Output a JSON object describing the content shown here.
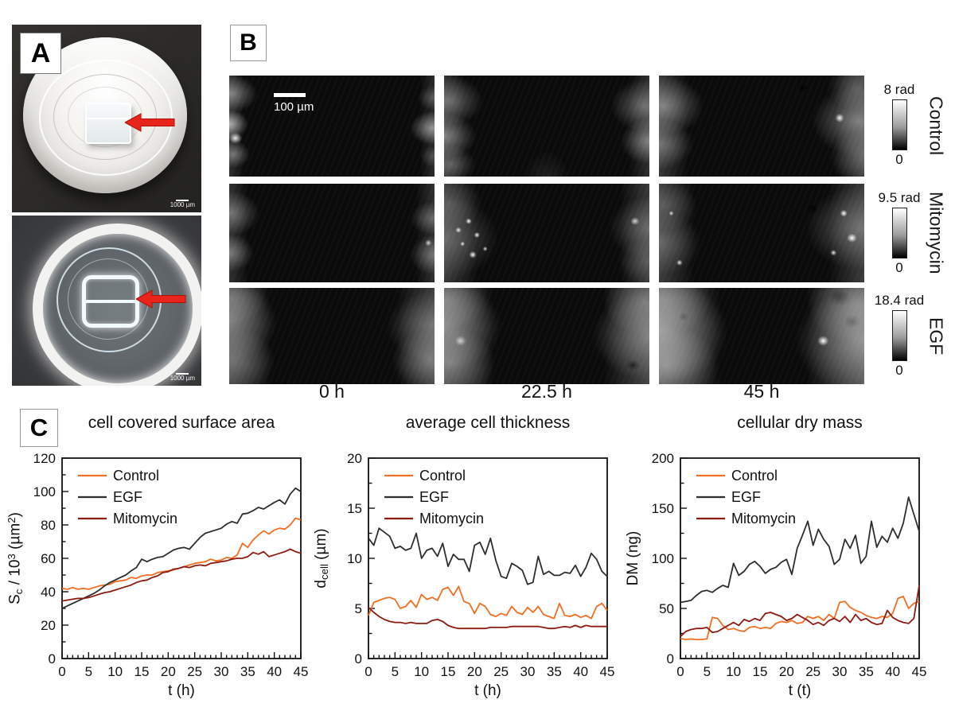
{
  "panelA": {
    "label": "A",
    "photos": [
      {
        "name": "dish-side-view",
        "scale_bar": "1000 µm"
      },
      {
        "name": "dish-top-view",
        "scale_bar": "1000 µm"
      }
    ]
  },
  "panelB": {
    "label": "B",
    "scale_bar": "100 µm",
    "rows": [
      {
        "label": "Control",
        "cbar_max": "8 rad",
        "cbar_min": "0"
      },
      {
        "label": "Mitomycin",
        "cbar_max": "9.5 rad",
        "cbar_min": "0"
      },
      {
        "label": "EGF",
        "cbar_max": "18.4 rad",
        "cbar_min": "0"
      }
    ],
    "time_labels": [
      "0 h",
      "22.5 h",
      "45 h"
    ]
  },
  "panelC": {
    "label": "C"
  },
  "colors": {
    "control": "#F06F22",
    "egf": "#2E2E2E",
    "mitomycin": "#8E1B12",
    "arrow_red": "#E8251C"
  },
  "chart_data": [
    {
      "type": "line",
      "title": "cell covered surface area",
      "xlabel": "t (h)",
      "ylabel": "S_c / 10^3 (µm^2)",
      "ylabel_parts": [
        {
          "t": "S"
        },
        {
          "t": "c",
          "style": "sub"
        },
        {
          "t": " / 10"
        },
        {
          "t": "3",
          "style": "sup"
        },
        {
          "t": " (µm"
        },
        {
          "t": "2",
          "style": "sup"
        },
        {
          "t": ")"
        }
      ],
      "xlim": [
        0,
        45
      ],
      "ylim": [
        0,
        120
      ],
      "xtick_step": 5,
      "ytick_step": 20,
      "xminor_step": 1,
      "grid": false,
      "legend_position": "top-left",
      "x": [
        0,
        1,
        2,
        3,
        4,
        5,
        6,
        7,
        8,
        9,
        10,
        11,
        12,
        13,
        14,
        15,
        16,
        17,
        18,
        19,
        20,
        21,
        22,
        23,
        24,
        25,
        26,
        27,
        28,
        29,
        30,
        31,
        32,
        33,
        34,
        35,
        36,
        37,
        38,
        39,
        40,
        41,
        42,
        43,
        44,
        45
      ],
      "series": [
        {
          "name": "Control",
          "color": "#F06F22",
          "values": [
            42,
            41.5,
            42.5,
            41.5,
            42,
            41.5,
            42.5,
            43.5,
            44,
            44.5,
            46,
            46.5,
            47,
            48.5,
            48,
            49.5,
            50,
            50,
            51.5,
            52,
            52.5,
            53,
            54,
            55,
            56,
            57,
            57.5,
            58,
            59.5,
            58.5,
            59,
            60.5,
            60,
            62,
            69,
            66.5,
            71,
            74,
            76.5,
            74.5,
            77,
            78,
            77.5,
            80,
            84,
            83
          ]
        },
        {
          "name": "EGF",
          "color": "#2E2E2E",
          "values": [
            30,
            31.5,
            33,
            34.5,
            36,
            37.5,
            39,
            41,
            43.5,
            45.5,
            47,
            48.5,
            50,
            52.5,
            54.5,
            59.5,
            58,
            59.5,
            60.5,
            61,
            63,
            65,
            66,
            66.5,
            65.5,
            69,
            72.5,
            75,
            76,
            77,
            78,
            80.5,
            82,
            81,
            86.5,
            87,
            88.5,
            90.5,
            89.5,
            91.5,
            93.5,
            95,
            92.5,
            98.5,
            102,
            100
          ]
        },
        {
          "name": "Mitomycin",
          "color": "#8E1B12",
          "values": [
            34.5,
            35,
            35.5,
            36,
            36,
            36.5,
            37.5,
            38.5,
            39.5,
            40,
            41,
            42,
            43,
            44,
            45.5,
            46.5,
            47,
            48.5,
            49.5,
            51.5,
            52,
            53.5,
            54,
            55,
            54.5,
            55.5,
            56,
            55.5,
            57,
            57.5,
            58,
            58.5,
            59.5,
            60,
            60,
            61,
            63.5,
            62.5,
            64,
            61,
            62,
            63,
            64,
            65.5,
            64,
            63
          ]
        }
      ]
    },
    {
      "type": "line",
      "title": "average cell thickness",
      "xlabel": "t (h)",
      "ylabel": "d_cell (µm)",
      "ylabel_parts": [
        {
          "t": "d"
        },
        {
          "t": "cell",
          "style": "sub"
        },
        {
          "t": " (µm)"
        }
      ],
      "xlim": [
        0,
        45
      ],
      "ylim": [
        0,
        20
      ],
      "xtick_step": 5,
      "ytick_step": 5,
      "xminor_step": 1,
      "grid": false,
      "legend_position": "top-left",
      "x": [
        0,
        1,
        2,
        3,
        4,
        5,
        6,
        7,
        8,
        9,
        10,
        11,
        12,
        13,
        14,
        15,
        16,
        17,
        18,
        19,
        20,
        21,
        22,
        23,
        24,
        25,
        26,
        27,
        28,
        29,
        30,
        31,
        32,
        33,
        34,
        35,
        36,
        37,
        38,
        39,
        40,
        41,
        42,
        43,
        44,
        45
      ],
      "series": [
        {
          "name": "Control",
          "color": "#F06F22",
          "values": [
            4.3,
            5.6,
            5.8,
            6,
            6.1,
            5.9,
            5,
            5.2,
            5.8,
            5.1,
            6.4,
            5.9,
            6.1,
            5.8,
            6.9,
            7.1,
            6.3,
            7.2,
            5.7,
            5.5,
            4.5,
            5.5,
            5.2,
            4.4,
            4.2,
            4.5,
            4.3,
            5.2,
            4.6,
            4.4,
            5.1,
            4.6,
            5.2,
            4.4,
            4.2,
            4,
            5.5,
            4.3,
            4.2,
            4.4,
            4.1,
            4.3,
            4,
            5.2,
            5.5,
            4.8
          ]
        },
        {
          "name": "EGF",
          "color": "#2E2E2E",
          "values": [
            12,
            11.3,
            13,
            12.6,
            12.2,
            11,
            11.2,
            10.8,
            11,
            12.5,
            10,
            10.8,
            11,
            10.2,
            11.5,
            9.2,
            10.4,
            9.9,
            9.9,
            8.7,
            11.3,
            11.6,
            10.4,
            12,
            9.8,
            8.2,
            8,
            9.5,
            9.2,
            8.8,
            7.4,
            7.6,
            10.2,
            8.4,
            8.7,
            8.3,
            8.3,
            8.6,
            8.5,
            9.3,
            8.2,
            9.1,
            10.5,
            9.9,
            8.7,
            8.2
          ]
        },
        {
          "name": "Mitomycin",
          "color": "#8E1B12",
          "values": [
            5.1,
            4.6,
            4.2,
            3.9,
            3.7,
            3.6,
            3.6,
            3.5,
            3.6,
            3.5,
            3.5,
            3.5,
            3.8,
            3.9,
            3.7,
            3.3,
            3.1,
            3,
            3,
            3,
            3,
            3,
            3,
            3.1,
            3.1,
            3.1,
            3.1,
            3.2,
            3.2,
            3.2,
            3.2,
            3.2,
            3.2,
            3.1,
            3,
            3,
            3.1,
            3.2,
            3.1,
            3.3,
            3.1,
            3.3,
            3.2,
            3.2,
            3.2,
            3.2
          ]
        }
      ]
    },
    {
      "type": "line",
      "title": "cellular dry mass",
      "xlabel": "t (t)",
      "ylabel": "DM (ng)",
      "ylabel_parts": [
        {
          "t": "DM (ng)"
        }
      ],
      "xlim": [
        0,
        45
      ],
      "ylim": [
        0,
        200
      ],
      "xtick_step": 5,
      "ytick_step": 50,
      "xminor_step": 1,
      "grid": false,
      "legend_position": "top-left",
      "x": [
        0,
        1,
        2,
        3,
        4,
        5,
        6,
        7,
        8,
        9,
        10,
        11,
        12,
        13,
        14,
        15,
        16,
        17,
        18,
        19,
        20,
        21,
        22,
        23,
        24,
        25,
        26,
        27,
        28,
        29,
        30,
        31,
        32,
        33,
        34,
        35,
        36,
        37,
        38,
        39,
        40,
        41,
        42,
        43,
        44,
        45
      ],
      "series": [
        {
          "name": "Control",
          "color": "#F06F22",
          "values": [
            20,
            19,
            19.5,
            19,
            19,
            19.5,
            41,
            40,
            33,
            29,
            30,
            28,
            27,
            31,
            32,
            30,
            31,
            30,
            35,
            37,
            36,
            38,
            35,
            36,
            42,
            40,
            42,
            38,
            44,
            40,
            56,
            57,
            51,
            48,
            46,
            43,
            41,
            40,
            42,
            41,
            45,
            60,
            62,
            50,
            55,
            57
          ]
        },
        {
          "name": "EGF",
          "color": "#2E2E2E",
          "values": [
            56,
            57,
            58,
            63,
            67,
            68,
            66,
            70,
            73,
            71,
            95,
            83,
            87,
            94,
            97,
            92,
            85,
            89,
            91,
            96,
            99,
            84,
            110,
            123,
            137,
            113,
            129,
            119,
            112,
            94,
            99,
            119,
            110,
            123,
            95,
            102,
            137,
            111,
            122,
            116,
            130,
            120,
            135,
            161,
            144,
            127
          ]
        },
        {
          "name": "Mitomycin",
          "color": "#8E1B12",
          "values": [
            22,
            27,
            29,
            30,
            30,
            31,
            26,
            27,
            30,
            33,
            36,
            33,
            39,
            37,
            40,
            38,
            45,
            46,
            44,
            42,
            38,
            40,
            44,
            41,
            38,
            34,
            36,
            33,
            38,
            40,
            37,
            42,
            36,
            44,
            38,
            40,
            36,
            34,
            35,
            48,
            41,
            38,
            36,
            35,
            40,
            73
          ]
        }
      ]
    }
  ]
}
